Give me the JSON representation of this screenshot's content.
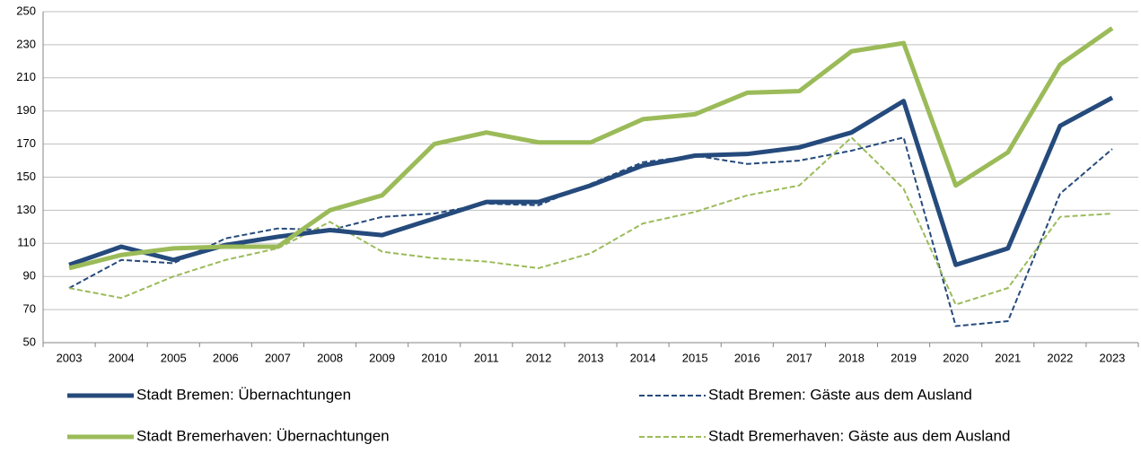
{
  "chart_data": {
    "type": "line",
    "categories": [
      "2003",
      "2004",
      "2005",
      "2006",
      "2007",
      "2008",
      "2009",
      "2010",
      "2011",
      "2012",
      "2013",
      "2014",
      "2015",
      "2016",
      "2017",
      "2018",
      "2019",
      "2020",
      "2021",
      "2022",
      "2023"
    ],
    "series": [
      {
        "name": "Stadt Bremen: Übernachtungen",
        "color": "#254a7c",
        "dash": false,
        "values": [
          97,
          108,
          100,
          109,
          114,
          118,
          115,
          125,
          135,
          135,
          145,
          157,
          163,
          164,
          168,
          177,
          196,
          97,
          107,
          181,
          198
        ]
      },
      {
        "name": "Stadt Bremen: Gäste aus dem Ausland",
        "color": "#254a7c",
        "dash": true,
        "values": [
          83,
          100,
          98,
          113,
          119,
          118,
          126,
          128,
          134,
          133,
          146,
          159,
          163,
          158,
          160,
          166,
          174,
          60,
          63,
          140,
          167
        ]
      },
      {
        "name": "Stadt Bremerhaven: Übernachtungen",
        "color": "#9bbb59",
        "dash": false,
        "values": [
          95,
          103,
          107,
          108,
          108,
          130,
          139,
          170,
          177,
          171,
          171,
          185,
          188,
          201,
          202,
          226,
          231,
          145,
          165,
          218,
          240
        ]
      },
      {
        "name": "Stadt Bremerhaven: Gäste aus dem Ausland",
        "color": "#9bbb59",
        "dash": true,
        "values": [
          83,
          77,
          90,
          100,
          107,
          123,
          105,
          101,
          99,
          95,
          104,
          122,
          129,
          139,
          145,
          174,
          143,
          73,
          83,
          126,
          128
        ]
      }
    ],
    "ylim": [
      50,
      250
    ],
    "yticks": [
      50,
      70,
      90,
      110,
      130,
      150,
      170,
      190,
      210,
      230,
      250
    ],
    "grid": true
  }
}
